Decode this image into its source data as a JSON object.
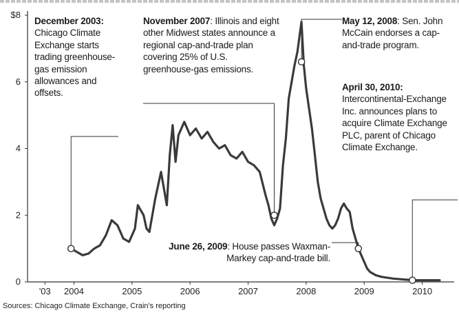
{
  "chart_data": {
    "type": "line",
    "title": "",
    "xlabel": "",
    "ylabel": "",
    "ylim": [
      0,
      8
    ],
    "yticks": [
      "$8",
      "6",
      "4",
      "2",
      "0"
    ],
    "xticks": [
      "'03",
      "2004",
      "2005",
      "2006",
      "2007",
      "2008",
      "2009",
      "2010"
    ],
    "grid": false,
    "legend": "none",
    "line_color": "#3a3a3a",
    "series": [
      {
        "x": [
          2003.95,
          2004.05,
          2004.15,
          2004.25,
          2004.35,
          2004.45,
          2004.55,
          2004.65,
          2004.75,
          2004.85,
          2004.95,
          2005.05,
          2005.1,
          2005.2,
          2005.25,
          2005.3,
          2005.4,
          2005.5,
          2005.6,
          2005.65,
          2005.7,
          2005.75,
          2005.8,
          2005.9,
          2006.0,
          2006.1,
          2006.2,
          2006.3,
          2006.4,
          2006.5,
          2006.6,
          2006.7,
          2006.8,
          2006.9,
          2007.0,
          2007.1,
          2007.2,
          2007.3,
          2007.35,
          2007.4,
          2007.45,
          2007.5,
          2007.55,
          2007.6,
          2007.65,
          2007.7,
          2007.75,
          2007.8,
          2007.85,
          2007.88,
          2007.92,
          2007.96,
          2008.0,
          2008.05,
          2008.1,
          2008.15,
          2008.2,
          2008.25,
          2008.3,
          2008.35,
          2008.4,
          2008.45,
          2008.5,
          2008.55,
          2008.6,
          2008.65,
          2008.7,
          2008.75,
          2008.8,
          2008.85,
          2008.9,
          2008.95,
          2009.0,
          2009.05,
          2009.1,
          2009.2,
          2009.3,
          2009.5,
          2009.7,
          2009.9,
          2010.1,
          2010.3
        ],
        "y": [
          1.0,
          0.9,
          0.8,
          0.85,
          1.0,
          1.1,
          1.4,
          1.85,
          1.7,
          1.3,
          1.2,
          1.6,
          2.3,
          2.0,
          1.6,
          1.5,
          2.5,
          3.3,
          2.3,
          3.8,
          4.7,
          3.6,
          4.4,
          4.8,
          4.4,
          4.6,
          4.3,
          4.5,
          4.2,
          4.0,
          4.1,
          3.8,
          3.7,
          3.9,
          3.6,
          3.5,
          3.3,
          2.6,
          2.3,
          1.9,
          1.7,
          1.9,
          2.2,
          3.5,
          4.3,
          5.5,
          6.0,
          6.5,
          6.9,
          7.3,
          7.8,
          6.5,
          5.8,
          5.2,
          4.6,
          3.8,
          3.0,
          2.5,
          2.2,
          1.9,
          1.7,
          1.6,
          1.7,
          1.9,
          2.2,
          2.35,
          2.2,
          2.1,
          1.6,
          1.3,
          1.0,
          0.8,
          0.6,
          0.4,
          0.3,
          0.2,
          0.15,
          0.1,
          0.07,
          0.05,
          0.05,
          0.05
        ]
      }
    ],
    "markers": [
      {
        "x": 2003.95,
        "y": 1.0
      },
      {
        "x": 2007.45,
        "y": 2.0
      },
      {
        "x": 2007.92,
        "y": 6.6
      },
      {
        "x": 2008.9,
        "y": 1.0
      },
      {
        "x": 2009.83,
        "y": 0.05
      }
    ]
  },
  "annotations": [
    {
      "bold": "December 2003:",
      "text": "Chicago Climate Exchange starts trading greenhouse-gas emission allowances and offsets."
    },
    {
      "bold": "November 2007",
      "text": ": Illinois and eight other Midwest states announce a regional cap-and-trade plan covering 25% of U.S. greenhouse-gas emissions."
    },
    {
      "bold": "May 12, 2008",
      "text": ": Sen. John McCain endorses a cap-and-trade program."
    },
    {
      "bold": "April 30, 2010:",
      "text": "Intercontinental-Exchange Inc. announces plans to acquire Climate Exchange PLC, parent of Chicago Climate Exchange."
    },
    {
      "bold": "June 26, 2009",
      "text": ": House passes Waxman-Markey cap-and-trade bill."
    }
  ],
  "source": "Sources: Chicago Climate Exchange, Crain's reporting"
}
